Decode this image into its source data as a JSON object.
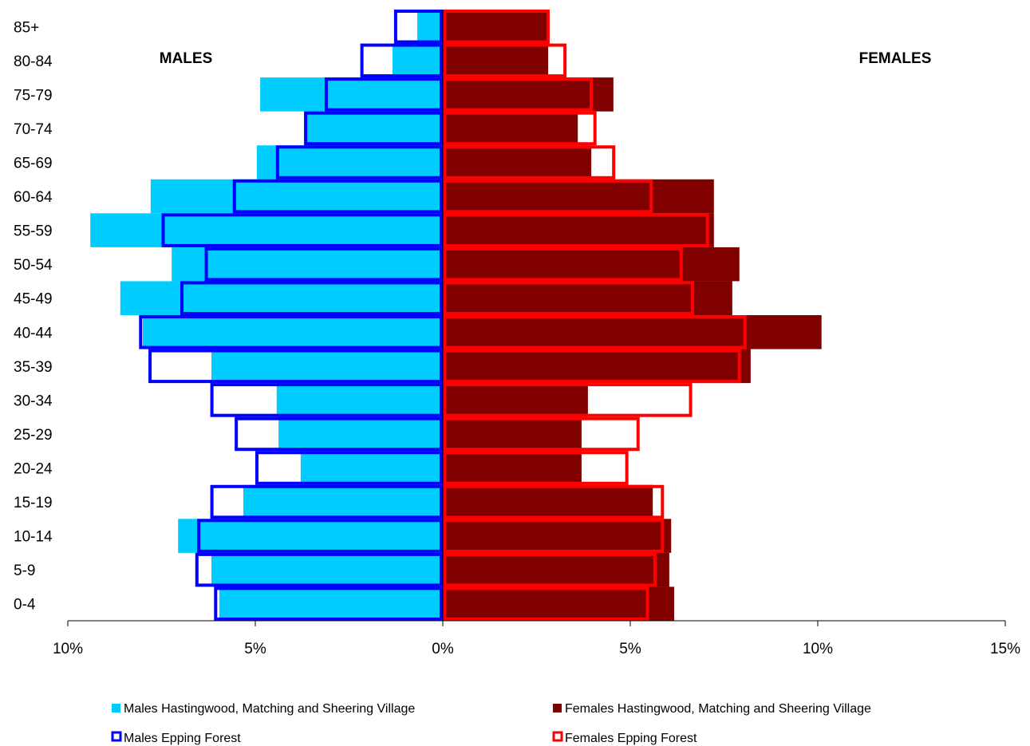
{
  "chart_data": {
    "type": "bar",
    "orientation": "horizontal",
    "subtype": "population-pyramid",
    "categories": [
      "0-4",
      "5-9",
      "10-14",
      "15-19",
      "20-24",
      "25-29",
      "30-34",
      "35-39",
      "40-44",
      "45-49",
      "50-54",
      "55-59",
      "60-64",
      "65-69",
      "70-74",
      "75-79",
      "80-84",
      "85+"
    ],
    "series": [
      {
        "name": "Males Hastingwood, Matching and Sheering Village",
        "side": "left",
        "style": "filled",
        "color": "#00ccff",
        "values": [
          5.96,
          6.17,
          7.06,
          5.32,
          3.79,
          4.38,
          4.43,
          6.17,
          8.0,
          8.6,
          7.23,
          9.4,
          7.79,
          4.96,
          3.62,
          4.87,
          1.34,
          0.68
        ]
      },
      {
        "name": "Females Hastingwood, Matching and Sheering Village",
        "side": "right",
        "style": "filled",
        "color": "#800000",
        "values": [
          6.17,
          6.04,
          6.09,
          5.6,
          3.7,
          3.7,
          3.87,
          8.21,
          10.1,
          7.72,
          7.91,
          7.23,
          7.23,
          3.96,
          3.6,
          4.55,
          2.81,
          2.81
        ]
      },
      {
        "name": "Males Epping Forest",
        "side": "left",
        "style": "outline",
        "color": "#0000ff",
        "values": [
          6.1,
          6.6,
          6.55,
          6.2,
          5.0,
          5.55,
          6.2,
          7.85,
          8.1,
          7.0,
          6.35,
          7.5,
          5.6,
          4.45,
          3.7,
          3.15,
          2.2,
          1.3
        ]
      },
      {
        "name": "Females Epping Forest",
        "side": "right",
        "style": "outline",
        "color": "#ff0000",
        "values": [
          5.5,
          5.7,
          5.9,
          5.9,
          4.95,
          5.25,
          6.65,
          7.95,
          8.1,
          6.7,
          6.4,
          7.1,
          5.6,
          4.6,
          4.1,
          4.0,
          3.3,
          2.85
        ]
      }
    ],
    "x_ticks": [
      "10%",
      "5%",
      "0%",
      "5%",
      "10%",
      "15%"
    ],
    "xlim": [
      -10,
      15
    ],
    "unit": "%",
    "group_labels": {
      "left": "MALES",
      "right": "FEMALES"
    },
    "grid": false,
    "legend_position": "bottom"
  }
}
